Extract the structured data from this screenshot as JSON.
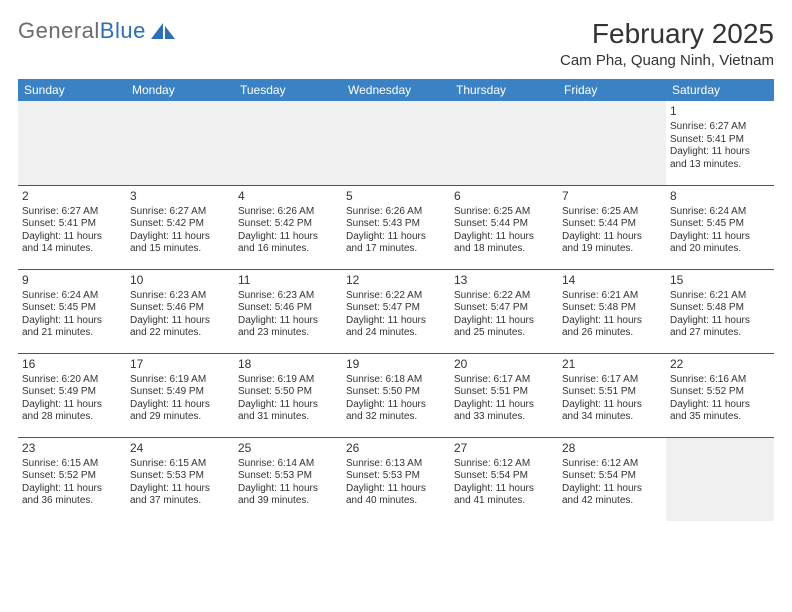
{
  "logo": {
    "text1": "General",
    "text2": "Blue"
  },
  "title": "February 2025",
  "location": "Cam Pha, Quang Ninh, Vietnam",
  "colors": {
    "header_bg": "#3b82c4",
    "header_text": "#ffffff",
    "border": "#2e5c8a",
    "blank_bg": "#f0f0f0",
    "logo_gray": "#6b6b6b",
    "logo_blue": "#2c6fb5"
  },
  "day_names": [
    "Sunday",
    "Monday",
    "Tuesday",
    "Wednesday",
    "Thursday",
    "Friday",
    "Saturday"
  ],
  "weeks": [
    [
      null,
      null,
      null,
      null,
      null,
      null,
      {
        "n": "1",
        "sr": "Sunrise: 6:27 AM",
        "ss": "Sunset: 5:41 PM",
        "d1": "Daylight: 11 hours",
        "d2": "and 13 minutes."
      }
    ],
    [
      {
        "n": "2",
        "sr": "Sunrise: 6:27 AM",
        "ss": "Sunset: 5:41 PM",
        "d1": "Daylight: 11 hours",
        "d2": "and 14 minutes."
      },
      {
        "n": "3",
        "sr": "Sunrise: 6:27 AM",
        "ss": "Sunset: 5:42 PM",
        "d1": "Daylight: 11 hours",
        "d2": "and 15 minutes."
      },
      {
        "n": "4",
        "sr": "Sunrise: 6:26 AM",
        "ss": "Sunset: 5:42 PM",
        "d1": "Daylight: 11 hours",
        "d2": "and 16 minutes."
      },
      {
        "n": "5",
        "sr": "Sunrise: 6:26 AM",
        "ss": "Sunset: 5:43 PM",
        "d1": "Daylight: 11 hours",
        "d2": "and 17 minutes."
      },
      {
        "n": "6",
        "sr": "Sunrise: 6:25 AM",
        "ss": "Sunset: 5:44 PM",
        "d1": "Daylight: 11 hours",
        "d2": "and 18 minutes."
      },
      {
        "n": "7",
        "sr": "Sunrise: 6:25 AM",
        "ss": "Sunset: 5:44 PM",
        "d1": "Daylight: 11 hours",
        "d2": "and 19 minutes."
      },
      {
        "n": "8",
        "sr": "Sunrise: 6:24 AM",
        "ss": "Sunset: 5:45 PM",
        "d1": "Daylight: 11 hours",
        "d2": "and 20 minutes."
      }
    ],
    [
      {
        "n": "9",
        "sr": "Sunrise: 6:24 AM",
        "ss": "Sunset: 5:45 PM",
        "d1": "Daylight: 11 hours",
        "d2": "and 21 minutes."
      },
      {
        "n": "10",
        "sr": "Sunrise: 6:23 AM",
        "ss": "Sunset: 5:46 PM",
        "d1": "Daylight: 11 hours",
        "d2": "and 22 minutes."
      },
      {
        "n": "11",
        "sr": "Sunrise: 6:23 AM",
        "ss": "Sunset: 5:46 PM",
        "d1": "Daylight: 11 hours",
        "d2": "and 23 minutes."
      },
      {
        "n": "12",
        "sr": "Sunrise: 6:22 AM",
        "ss": "Sunset: 5:47 PM",
        "d1": "Daylight: 11 hours",
        "d2": "and 24 minutes."
      },
      {
        "n": "13",
        "sr": "Sunrise: 6:22 AM",
        "ss": "Sunset: 5:47 PM",
        "d1": "Daylight: 11 hours",
        "d2": "and 25 minutes."
      },
      {
        "n": "14",
        "sr": "Sunrise: 6:21 AM",
        "ss": "Sunset: 5:48 PM",
        "d1": "Daylight: 11 hours",
        "d2": "and 26 minutes."
      },
      {
        "n": "15",
        "sr": "Sunrise: 6:21 AM",
        "ss": "Sunset: 5:48 PM",
        "d1": "Daylight: 11 hours",
        "d2": "and 27 minutes."
      }
    ],
    [
      {
        "n": "16",
        "sr": "Sunrise: 6:20 AM",
        "ss": "Sunset: 5:49 PM",
        "d1": "Daylight: 11 hours",
        "d2": "and 28 minutes."
      },
      {
        "n": "17",
        "sr": "Sunrise: 6:19 AM",
        "ss": "Sunset: 5:49 PM",
        "d1": "Daylight: 11 hours",
        "d2": "and 29 minutes."
      },
      {
        "n": "18",
        "sr": "Sunrise: 6:19 AM",
        "ss": "Sunset: 5:50 PM",
        "d1": "Daylight: 11 hours",
        "d2": "and 31 minutes."
      },
      {
        "n": "19",
        "sr": "Sunrise: 6:18 AM",
        "ss": "Sunset: 5:50 PM",
        "d1": "Daylight: 11 hours",
        "d2": "and 32 minutes."
      },
      {
        "n": "20",
        "sr": "Sunrise: 6:17 AM",
        "ss": "Sunset: 5:51 PM",
        "d1": "Daylight: 11 hours",
        "d2": "and 33 minutes."
      },
      {
        "n": "21",
        "sr": "Sunrise: 6:17 AM",
        "ss": "Sunset: 5:51 PM",
        "d1": "Daylight: 11 hours",
        "d2": "and 34 minutes."
      },
      {
        "n": "22",
        "sr": "Sunrise: 6:16 AM",
        "ss": "Sunset: 5:52 PM",
        "d1": "Daylight: 11 hours",
        "d2": "and 35 minutes."
      }
    ],
    [
      {
        "n": "23",
        "sr": "Sunrise: 6:15 AM",
        "ss": "Sunset: 5:52 PM",
        "d1": "Daylight: 11 hours",
        "d2": "and 36 minutes."
      },
      {
        "n": "24",
        "sr": "Sunrise: 6:15 AM",
        "ss": "Sunset: 5:53 PM",
        "d1": "Daylight: 11 hours",
        "d2": "and 37 minutes."
      },
      {
        "n": "25",
        "sr": "Sunrise: 6:14 AM",
        "ss": "Sunset: 5:53 PM",
        "d1": "Daylight: 11 hours",
        "d2": "and 39 minutes."
      },
      {
        "n": "26",
        "sr": "Sunrise: 6:13 AM",
        "ss": "Sunset: 5:53 PM",
        "d1": "Daylight: 11 hours",
        "d2": "and 40 minutes."
      },
      {
        "n": "27",
        "sr": "Sunrise: 6:12 AM",
        "ss": "Sunset: 5:54 PM",
        "d1": "Daylight: 11 hours",
        "d2": "and 41 minutes."
      },
      {
        "n": "28",
        "sr": "Sunrise: 6:12 AM",
        "ss": "Sunset: 5:54 PM",
        "d1": "Daylight: 11 hours",
        "d2": "and 42 minutes."
      },
      null
    ]
  ]
}
